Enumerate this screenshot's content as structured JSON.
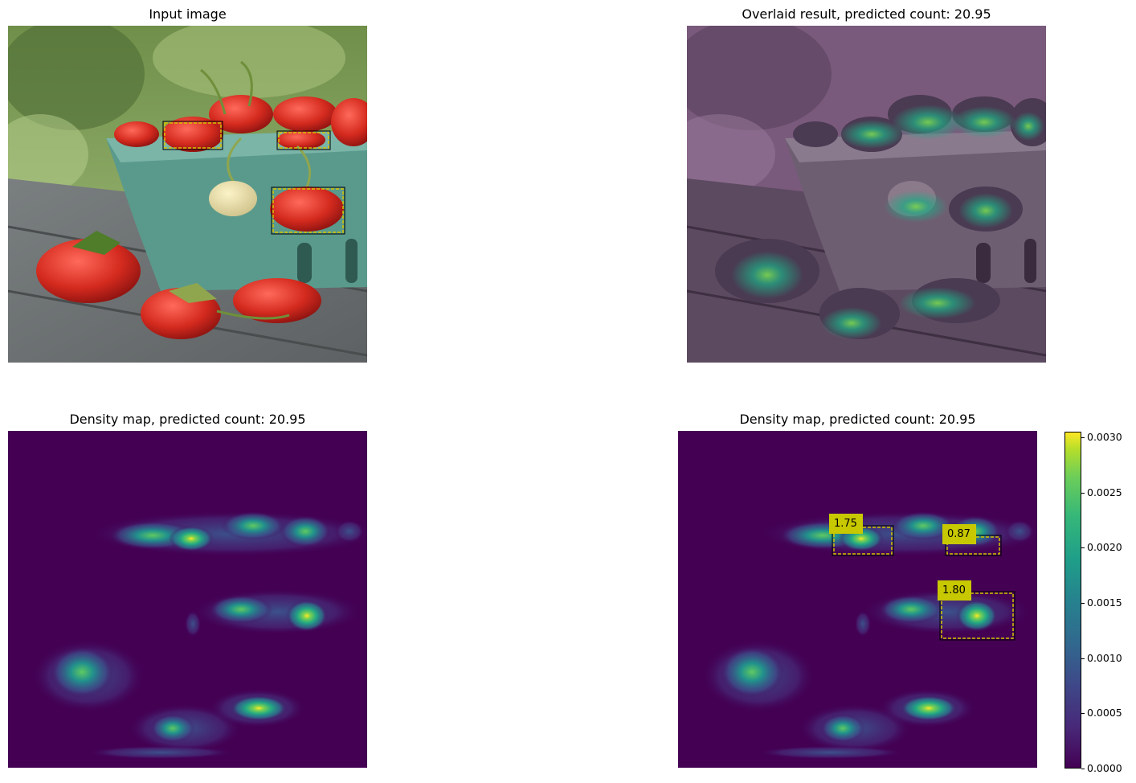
{
  "titles": {
    "input": "Input image",
    "overlay": "Overlaid result, predicted count: 20.95",
    "density": "Density map, predicted count: 20.95",
    "density_boxes": "Density map, predicted count: 20.95"
  },
  "box_labels": [
    "1.75",
    "0.87",
    "1.80"
  ],
  "colorbar": {
    "ticks": [
      "0.0030",
      "0.0025",
      "0.0020",
      "0.0015",
      "0.0010",
      "0.0005",
      "0.0000"
    ],
    "min": 0.0,
    "max": 0.00305,
    "colormap": "viridis"
  },
  "colors": {
    "box": "#d4c400",
    "label_bg": "#c8c800",
    "viridis_low": "#440154",
    "viridis_high": "#fde725"
  }
}
